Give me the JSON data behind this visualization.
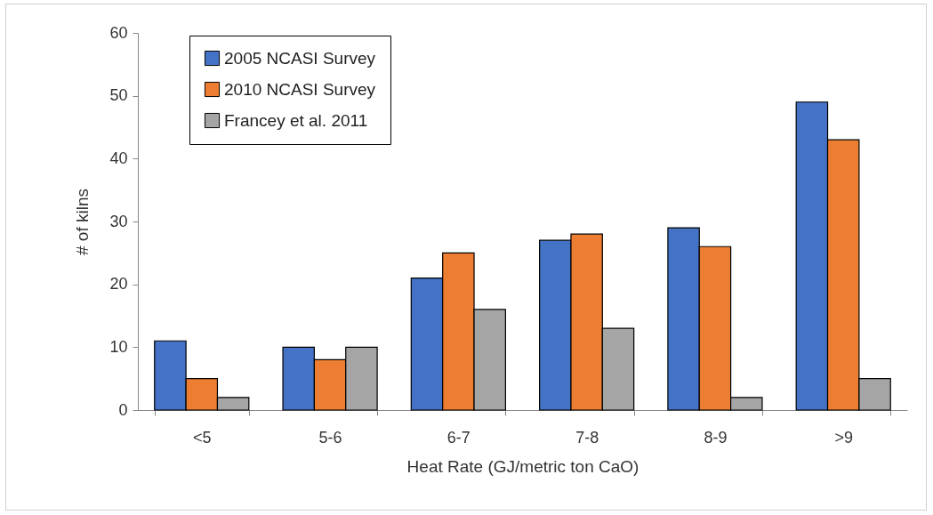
{
  "chart_data": {
    "type": "bar",
    "xlabel": "Heat Rate (GJ/metric ton CaO)",
    "ylabel": "# of kilns",
    "categories": [
      "<5",
      "5-6",
      "6-7",
      "7-8",
      "8-9",
      ">9"
    ],
    "series": [
      {
        "name": "2005 NCASI Survey",
        "color": "#4472c4",
        "values": [
          11,
          10,
          21,
          27,
          29,
          49
        ]
      },
      {
        "name": "2010 NCASI Survey",
        "color": "#ed7d31",
        "values": [
          5,
          8,
          25,
          28,
          26,
          43
        ]
      },
      {
        "name": "Francey et al. 2011",
        "color": "#a5a5a5",
        "values": [
          2,
          10,
          16,
          13,
          2,
          5
        ]
      }
    ],
    "ylim": [
      0,
      60
    ],
    "yticks": [
      0,
      10,
      20,
      30,
      40,
      50,
      60
    ],
    "grid": false,
    "legend": "top left"
  }
}
